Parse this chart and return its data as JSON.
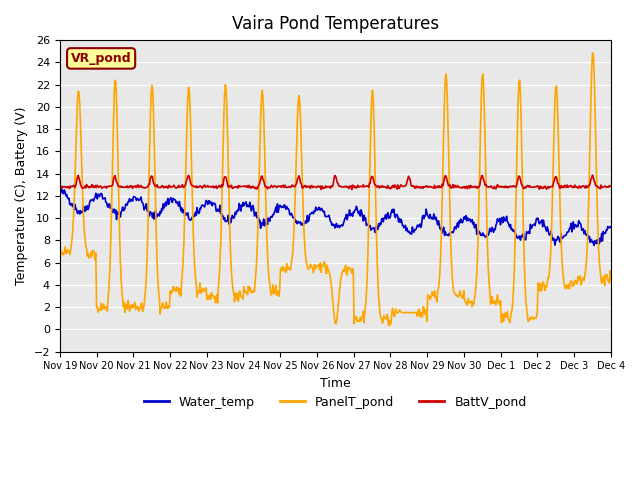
{
  "title": "Vaira Pond Temperatures",
  "ylabel": "Temperature (C), Battery (V)",
  "xlabel": "Time",
  "ylim": [
    -2,
    26
  ],
  "yticks": [
    -2,
    0,
    2,
    4,
    6,
    8,
    10,
    12,
    14,
    16,
    18,
    20,
    22,
    24,
    26
  ],
  "bg_color": "#e8e8e8",
  "annotation_text": "VR_pond",
  "annotation_bg": "#ffff99",
  "annotation_border": "#8b0000",
  "legend": [
    {
      "label": "Water_temp",
      "color": "#0000cc"
    },
    {
      "label": "PanelT_pond",
      "color": "#ffa500"
    },
    {
      "label": "BattV_pond",
      "color": "#cc0000"
    }
  ],
  "xtick_labels": [
    "Nov 19",
    "Nov 20",
    "Nov 21",
    "Nov 22",
    "Nov 23",
    "Nov 24",
    "Nov 25",
    "Nov 26",
    "Nov 27",
    "Nov 28",
    "Nov 29",
    "Nov 30",
    "Dec 1",
    "Dec 2",
    "Dec 3",
    "Dec 4"
  ],
  "n_days": 15,
  "pts_per_day": 48
}
